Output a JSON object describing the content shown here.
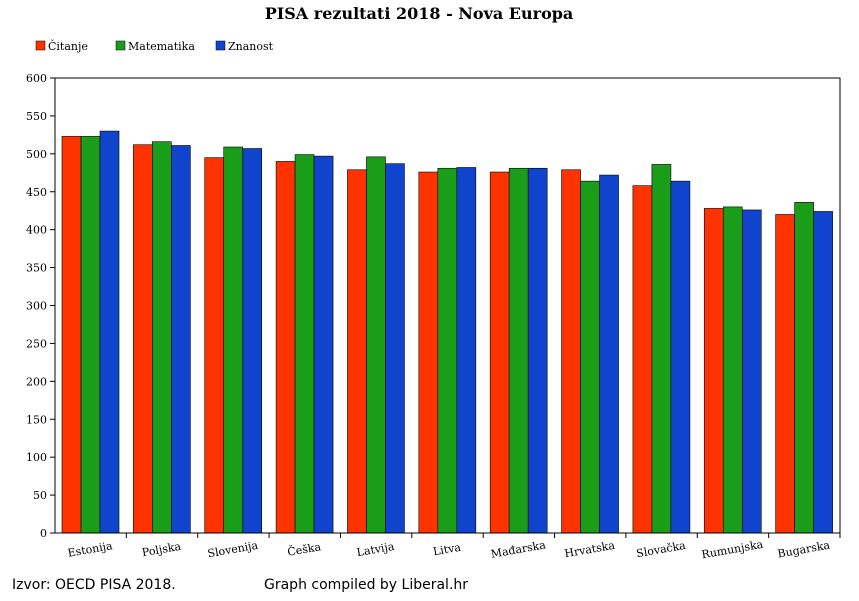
{
  "chart_data": {
    "type": "bar",
    "title": "PISA rezultati 2018 - Nova Europa",
    "categories": [
      "Estonija",
      "Poljska",
      "Slovenija",
      "Češka",
      "Latvija",
      "Litva",
      "Mađarska",
      "Hrvatska",
      "Slovačka",
      "Rumunjska",
      "Bugarska"
    ],
    "series": [
      {
        "name": "Čitanje",
        "color": "#ff3300",
        "values": [
          523,
          512,
          495,
          490,
          479,
          476,
          476,
          479,
          458,
          428,
          420
        ]
      },
      {
        "name": "Matematika",
        "color": "#1a9e1a",
        "values": [
          523,
          516,
          509,
          499,
          496,
          481,
          481,
          464,
          486,
          430,
          436
        ]
      },
      {
        "name": "Znanost",
        "color": "#1144cc",
        "values": [
          530,
          511,
          507,
          497,
          487,
          482,
          481,
          472,
          464,
          426,
          424
        ]
      }
    ],
    "ylim": [
      0,
      600
    ],
    "yticks": [
      0,
      50,
      100,
      150,
      200,
      250,
      300,
      350,
      400,
      450,
      500,
      550,
      600
    ],
    "grid": false,
    "legend": "top-left"
  },
  "footer": {
    "source": "Izvor: OECD PISA 2018.",
    "credit": "Graph compiled by Liberal.hr"
  }
}
